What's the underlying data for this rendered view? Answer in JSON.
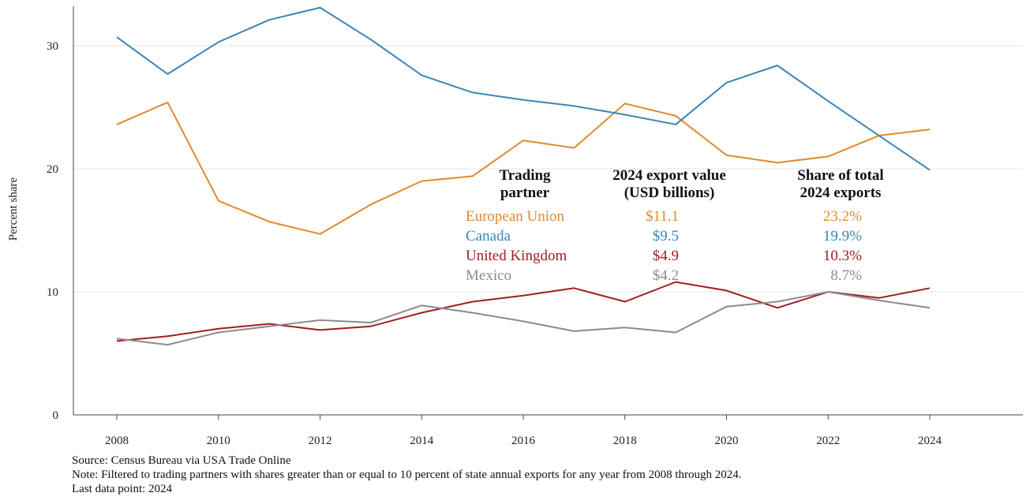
{
  "chart_data": {
    "type": "line",
    "ylabel": "Percent share",
    "xlim": [
      2007.3,
      2025.8
    ],
    "ylim": [
      0,
      33
    ],
    "y_ticks": [
      0,
      10,
      20,
      30
    ],
    "x_ticks": [
      2008,
      2010,
      2012,
      2014,
      2016,
      2018,
      2020,
      2022,
      2024
    ],
    "grid": "horizontal",
    "x": [
      2008,
      2009,
      2010,
      2011,
      2012,
      2013,
      2014,
      2015,
      2016,
      2017,
      2018,
      2019,
      2020,
      2021,
      2022,
      2023,
      2024
    ],
    "series": [
      {
        "name": "European Union",
        "color": "#e08a2e",
        "values": [
          23.6,
          25.4,
          17.4,
          15.7,
          14.7,
          17.1,
          19.0,
          19.4,
          22.3,
          21.7,
          25.3,
          24.3,
          21.1,
          20.5,
          21.0,
          22.7,
          23.2
        ]
      },
      {
        "name": "Canada",
        "color": "#3a86b8",
        "values": [
          30.7,
          27.7,
          30.3,
          32.1,
          33.1,
          30.5,
          27.6,
          26.2,
          25.6,
          25.1,
          24.4,
          23.6,
          27.0,
          28.4,
          25.5,
          22.7,
          19.9
        ]
      },
      {
        "name": "United Kingdom",
        "color": "#a11d21",
        "values": [
          6.0,
          6.4,
          7.0,
          7.4,
          6.9,
          7.2,
          8.3,
          9.2,
          9.7,
          10.3,
          9.2,
          10.8,
          10.1,
          8.7,
          10.0,
          9.5,
          10.3
        ]
      },
      {
        "name": "Mexico",
        "color": "#8c8c8c",
        "values": [
          6.2,
          5.7,
          6.7,
          7.2,
          7.7,
          7.5,
          8.9,
          8.3,
          7.6,
          6.8,
          7.1,
          6.7,
          8.8,
          9.2,
          10.0,
          9.3,
          8.7
        ]
      }
    ],
    "table": {
      "headers": [
        [
          "Trading",
          "partner"
        ],
        [
          "2024 export value",
          "(USD billions)"
        ],
        [
          "Share of total",
          "2024 exports"
        ]
      ],
      "rows": [
        {
          "partner": "European Union",
          "value": "$11.1",
          "share": "23.2%"
        },
        {
          "partner": "Canada",
          "value": "$9.5",
          "share": "19.9%"
        },
        {
          "partner": "United Kingdom",
          "value": "$4.9",
          "share": "10.3%"
        },
        {
          "partner": "Mexico",
          "value": "$4.2",
          "share": "8.7%"
        }
      ]
    }
  },
  "footer": {
    "source": "Source: Census Bureau via USA Trade Online",
    "note": "Note: Filtered to trading partners with shares greater than or equal to 10 percent of state annual exports for any year from 2008 through 2024.",
    "last_point": "Last data point: 2024"
  }
}
